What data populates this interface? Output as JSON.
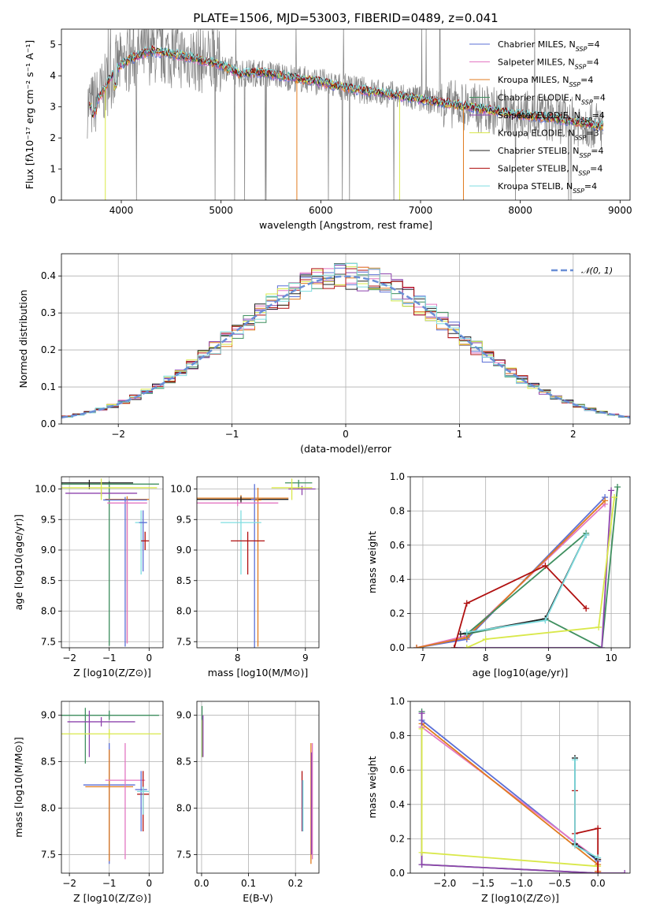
{
  "figure": {
    "title": "PLATE=1506, MJD=53003, FIBERID=0489, z=0.041"
  },
  "chart_data": [
    {
      "id": "spectrum",
      "type": "line",
      "title": "PLATE=1506, MJD=53003, FIBERID=0489, z=0.041",
      "xlabel": "wavelength [Angstrom, rest frame]",
      "ylabel": "Flux [fλ10⁻¹⁷ erg cm⁻² s⁻¹ A⁻¹]",
      "xlim": [
        3400,
        9100
      ],
      "ylim": [
        0,
        5.5
      ],
      "xticks": [
        4000,
        5000,
        6000,
        7000,
        8000,
        9000
      ],
      "yticks": [
        0,
        1,
        2,
        3,
        4,
        5
      ],
      "grid": false,
      "legend_position": "top-right",
      "continuum": [
        [
          3650,
          3.1
        ],
        [
          3700,
          3.0
        ],
        [
          3800,
          3.4
        ],
        [
          3900,
          4.0
        ],
        [
          3950,
          4.25
        ],
        [
          4000,
          4.35
        ],
        [
          4100,
          4.55
        ],
        [
          4200,
          4.7
        ],
        [
          4300,
          4.8
        ],
        [
          4400,
          4.75
        ],
        [
          4500,
          4.7
        ],
        [
          4600,
          4.65
        ],
        [
          4700,
          4.6
        ],
        [
          4800,
          4.5
        ],
        [
          4900,
          4.45
        ],
        [
          5000,
          4.35
        ],
        [
          5100,
          4.2
        ],
        [
          5200,
          4.05
        ],
        [
          5300,
          4.1
        ],
        [
          5400,
          4.1
        ],
        [
          5500,
          4.05
        ],
        [
          5700,
          3.95
        ],
        [
          6000,
          3.8
        ],
        [
          6200,
          3.65
        ],
        [
          6500,
          3.5
        ],
        [
          6800,
          3.35
        ],
        [
          7000,
          3.25
        ],
        [
          7200,
          3.15
        ],
        [
          7500,
          3.0
        ],
        [
          7800,
          2.85
        ],
        [
          8000,
          2.75
        ],
        [
          8300,
          2.65
        ],
        [
          8600,
          2.5
        ],
        [
          8800,
          2.4
        ]
      ],
      "series": [
        {
          "name": "Chabrier MILES, N_SSP=4",
          "color": "#5b6fd6"
        },
        {
          "name": "Salpeter MILES, N_SSP=4",
          "color": "#e377c2"
        },
        {
          "name": "Kroupa MILES, N_SSP=4",
          "color": "#e07b1f"
        },
        {
          "name": "Chabrier ELODIE, N_SSP=4",
          "color": "#3f8f5f"
        },
        {
          "name": "Salpeter ELODIE, N_SSP=4",
          "color": "#8e44ad"
        },
        {
          "name": "Kroupa ELODIE, N_SSP=3",
          "color": "#d9e84a"
        },
        {
          "name": "Chabrier STELIB, N_SSP=4",
          "color": "#222222"
        },
        {
          "name": "Salpeter STELIB, N_SSP=4",
          "color": "#b01010"
        },
        {
          "name": "Kroupa STELIB, N_SSP=4",
          "color": "#7fdde0"
        }
      ]
    },
    {
      "id": "residuals",
      "type": "line",
      "xlabel": "(data-model)/error",
      "ylabel": "Normed distribution",
      "xlim": [
        -2.5,
        2.5
      ],
      "ylim": [
        0,
        0.46
      ],
      "xticks": [
        -2,
        -1,
        0,
        1,
        2
      ],
      "yticks": [
        0.0,
        0.1,
        0.2,
        0.3,
        0.4
      ],
      "grid": true,
      "legend_position": "top-right",
      "legend": [
        "𝒩(0, 1)"
      ],
      "series_colors": [
        "#5b6fd6",
        "#e377c2",
        "#e07b1f",
        "#3f8f5f",
        "#8e44ad",
        "#d9e84a",
        "#222222",
        "#b01010",
        "#7fdde0"
      ]
    },
    {
      "id": "age_vs_Z",
      "type": "scatter",
      "xlabel": "Z [log10(Z/Z⊙)]",
      "ylabel": "age  [log10(age/yr)]",
      "xlim": [
        -2.2,
        0.35
      ],
      "ylim": [
        7.4,
        10.2
      ],
      "xticks": [
        -2,
        -1,
        0
      ],
      "yticks": [
        7.5,
        8.0,
        8.5,
        9.0,
        9.5,
        10.0
      ],
      "grid": true,
      "points": [
        {
          "x": -1.0,
          "y": 10.08,
          "xe": 1.25,
          "ye_lo": 2.65,
          "ye_hi": 0.05,
          "c": "#3f8f5f"
        },
        {
          "x": -1.5,
          "y": 10.1,
          "xe": 1.1,
          "ye_lo": 0.1,
          "ye_hi": 0.05,
          "c": "#222222"
        },
        {
          "x": -1.2,
          "y": 9.93,
          "xe": 0.9,
          "ye_lo": 0.05,
          "ye_hi": 0.05,
          "c": "#8e44ad"
        },
        {
          "x": -1.2,
          "y": 10.02,
          "xe": 1.4,
          "ye_lo": 0.2,
          "ye_hi": 0.15,
          "c": "#d9e84a"
        },
        {
          "x": -0.55,
          "y": 9.83,
          "xe": 0.55,
          "ye_lo": 2.35,
          "ye_hi": 0.05,
          "c": "#e07b1f"
        },
        {
          "x": -0.6,
          "y": 9.82,
          "xe": 0.55,
          "ye_lo": 2.4,
          "ye_hi": 0.05,
          "c": "#5b6fd6"
        },
        {
          "x": -0.55,
          "y": 9.77,
          "xe": 0.5,
          "ye_lo": 2.3,
          "ye_hi": 0.05,
          "c": "#e377c2"
        },
        {
          "x": -0.2,
          "y": 9.45,
          "xe": 0.15,
          "ye_lo": 0.85,
          "ye_hi": 0.2,
          "c": "#7fdde0"
        },
        {
          "x": -0.15,
          "y": 9.45,
          "xe": 0.1,
          "ye_lo": 0.8,
          "ye_hi": 0.2,
          "c": "#5b6fd6"
        },
        {
          "x": -0.1,
          "y": 9.15,
          "xe": 0.1,
          "ye_lo": 0.15,
          "ye_hi": 0.15,
          "c": "#b01010"
        }
      ]
    },
    {
      "id": "age_vs_mass",
      "type": "scatter",
      "xlabel": "mass [log10(M/M⊙)]",
      "ylabel": "",
      "xlim": [
        7.4,
        9.2
      ],
      "ylim": [
        7.4,
        10.2
      ],
      "xticks": [
        8,
        9
      ],
      "yticks": [
        7.5,
        8.0,
        8.5,
        9.0,
        9.5,
        10.0
      ],
      "grid": true,
      "points": [
        {
          "x": 8.9,
          "y": 10.1,
          "xe": 0.2,
          "ye_lo": 0.1,
          "ye_hi": 0.05,
          "c": "#3f8f5f"
        },
        {
          "x": 8.95,
          "y": 10.0,
          "xe": 0.2,
          "ye_lo": 0.1,
          "ye_hi": 0.05,
          "c": "#8e44ad"
        },
        {
          "x": 8.8,
          "y": 10.02,
          "xe": 0.3,
          "ye_lo": 0.2,
          "ye_hi": 0.15,
          "c": "#d9e84a"
        },
        {
          "x": 8.05,
          "y": 9.85,
          "xe": 0.7,
          "ye_lo": 0.05,
          "ye_hi": 0.05,
          "c": "#e07b1f"
        },
        {
          "x": 8.05,
          "y": 9.83,
          "xe": 0.7,
          "ye_lo": 0.05,
          "ye_hi": 0.05,
          "c": "#222222"
        },
        {
          "x": 8.25,
          "y": 9.83,
          "xe": 0.05,
          "ye_lo": 2.45,
          "ye_hi": 0.25,
          "c": "#5b6fd6"
        },
        {
          "x": 8.3,
          "y": 9.82,
          "xe": 0.05,
          "ye_lo": 2.4,
          "ye_hi": 0.2,
          "c": "#e07b1f"
        },
        {
          "x": 8.0,
          "y": 9.77,
          "xe": 0.6,
          "ye_lo": 0.05,
          "ye_hi": 0.05,
          "c": "#e377c2"
        },
        {
          "x": 8.05,
          "y": 9.45,
          "xe": 0.3,
          "ye_lo": 0.85,
          "ye_hi": 0.2,
          "c": "#7fdde0"
        },
        {
          "x": 8.15,
          "y": 9.15,
          "xe": 0.25,
          "ye_lo": 0.55,
          "ye_hi": 0.15,
          "c": "#b01010"
        }
      ]
    },
    {
      "id": "weight_vs_age",
      "type": "line",
      "xlabel": "age  [log10(age/yr)]",
      "ylabel": "mass weight",
      "xlim": [
        6.8,
        10.3
      ],
      "ylim": [
        0,
        1.0
      ],
      "xticks": [
        7,
        8,
        9,
        10
      ],
      "yticks": [
        0.0,
        0.2,
        0.4,
        0.6,
        0.8,
        1.0
      ],
      "grid": true,
      "series": [
        {
          "c": "#5b6fd6",
          "pts": [
            [
              6.9,
              0.0
            ],
            [
              7.7,
              0.05
            ],
            [
              9.9,
              0.88
            ]
          ]
        },
        {
          "c": "#e377c2",
          "pts": [
            [
              6.9,
              0.0
            ],
            [
              7.7,
              0.07
            ],
            [
              9.9,
              0.84
            ]
          ]
        },
        {
          "c": "#e07b1f",
          "pts": [
            [
              6.9,
              0.0
            ],
            [
              7.7,
              0.06
            ],
            [
              9.9,
              0.86
            ]
          ]
        },
        {
          "c": "#3f8f5f",
          "pts": [
            [
              7.7,
              0.08
            ],
            [
              9.6,
              0.67
            ],
            [
              7.7,
              0.08
            ],
            [
              8.95,
              0.17
            ],
            [
              9.85,
              0.0
            ],
            [
              10.1,
              0.94
            ]
          ]
        },
        {
          "c": "#8e44ad",
          "pts": [
            [
              7.5,
              0.0
            ],
            [
              9.85,
              0.0
            ],
            [
              10.0,
              0.92
            ]
          ]
        },
        {
          "c": "#d9e84a",
          "pts": [
            [
              7.7,
              0.0
            ],
            [
              8.0,
              0.05
            ],
            [
              9.8,
              0.12
            ],
            [
              10.05,
              0.88
            ]
          ]
        },
        {
          "c": "#222222",
          "pts": [
            [
              7.6,
              0.08
            ],
            [
              8.95,
              0.17
            ],
            [
              9.6,
              0.66
            ]
          ]
        },
        {
          "c": "#b01010",
          "pts": [
            [
              7.5,
              0.0
            ],
            [
              7.7,
              0.26
            ],
            [
              8.95,
              0.48
            ],
            [
              9.6,
              0.23
            ]
          ]
        },
        {
          "c": "#7fdde0",
          "pts": [
            [
              7.7,
              0.09
            ],
            [
              8.95,
              0.16
            ],
            [
              9.6,
              0.66
            ]
          ]
        }
      ]
    },
    {
      "id": "mass_vs_Z",
      "type": "scatter",
      "xlabel": "Z [log10(Z/Z⊙)]",
      "ylabel": "mass [log10(M/M⊙)]",
      "xlim": [
        -2.2,
        0.35
      ],
      "ylim": [
        7.3,
        9.15
      ],
      "xticks": [
        -2,
        -1,
        0
      ],
      "yticks": [
        7.5,
        8.0,
        8.5,
        9.0
      ],
      "grid": true,
      "points": [
        {
          "x": -1.0,
          "y": 9.0,
          "xe": 1.25,
          "ye_lo": 0.05,
          "ye_hi": 0.05,
          "c": "#3f8f5f"
        },
        {
          "x": -1.6,
          "y": 8.98,
          "xe": 0.0,
          "ye_lo": 0.5,
          "ye_hi": 0.1,
          "c": "#3f8f5f"
        },
        {
          "x": -1.2,
          "y": 8.93,
          "xe": 0.85,
          "ye_lo": 0.05,
          "ye_hi": 0.05,
          "c": "#8e44ad"
        },
        {
          "x": -1.5,
          "y": 8.95,
          "xe": 0.0,
          "ye_lo": 0.4,
          "ye_hi": 0.1,
          "c": "#8e44ad"
        },
        {
          "x": -1.0,
          "y": 8.8,
          "xe": 1.3,
          "ye_lo": 0.05,
          "ye_hi": 0.05,
          "c": "#d9e84a"
        },
        {
          "x": -1.0,
          "y": 8.25,
          "xe": 0.65,
          "ye_lo": 0.85,
          "ye_hi": 0.45,
          "c": "#5b6fd6"
        },
        {
          "x": -1.0,
          "y": 8.23,
          "xe": 0.6,
          "ye_lo": 0.8,
          "ye_hi": 0.4,
          "c": "#e07b1f"
        },
        {
          "x": -0.6,
          "y": 8.3,
          "xe": 0.5,
          "ye_lo": 0.85,
          "ye_hi": 0.4,
          "c": "#e377c2"
        },
        {
          "x": -0.15,
          "y": 8.15,
          "xe": 0.15,
          "ye_lo": 0.4,
          "ye_hi": 0.25,
          "c": "#b01010"
        },
        {
          "x": -0.2,
          "y": 8.2,
          "xe": 0.15,
          "ye_lo": 0.45,
          "ye_hi": 0.2,
          "c": "#5b6fd6"
        },
        {
          "x": -0.15,
          "y": 8.18,
          "xe": 0.15,
          "ye_lo": 0.25,
          "ye_hi": 0.05,
          "c": "#7fdde0"
        }
      ]
    },
    {
      "id": "mass_vs_ebv",
      "type": "scatter",
      "xlabel": "E(B-V)",
      "ylabel": "",
      "xlim": [
        -0.01,
        0.25
      ],
      "ylim": [
        7.3,
        9.15
      ],
      "xticks": [
        0.0,
        0.1,
        0.2
      ],
      "yticks": [
        7.5,
        8.0,
        8.5,
        9.0
      ],
      "grid": true,
      "points": [
        {
          "x": 0.001,
          "y": 8.85,
          "ye_lo": 0.3,
          "ye_hi": 0.25,
          "c": "#3f8f5f"
        },
        {
          "x": 0.002,
          "y": 8.75,
          "ye_lo": 0.2,
          "ye_hi": 0.2,
          "c": "#d9e84a"
        },
        {
          "x": 0.003,
          "y": 8.8,
          "ye_lo": 0.25,
          "ye_hi": 0.2,
          "c": "#8e44ad"
        },
        {
          "x": 0.214,
          "y": 8.1,
          "ye_lo": 0.35,
          "ye_hi": 0.3,
          "c": "#b01010"
        },
        {
          "x": 0.215,
          "y": 8.05,
          "ye_lo": 0.3,
          "ye_hi": 0.25,
          "c": "#5b6fd6"
        },
        {
          "x": 0.216,
          "y": 8.05,
          "ye_lo": 0.3,
          "ye_hi": 0.25,
          "c": "#7fdde0"
        },
        {
          "x": 0.233,
          "y": 8.05,
          "ye_lo": 0.65,
          "ye_hi": 0.65,
          "c": "#e07b1f"
        },
        {
          "x": 0.236,
          "y": 8.05,
          "ye_lo": 0.6,
          "ye_hi": 0.65,
          "c": "#e377c2"
        },
        {
          "x": 0.234,
          "y": 8.1,
          "ye_lo": 0.6,
          "ye_hi": 0.5,
          "c": "#8e44ad"
        }
      ]
    },
    {
      "id": "weight_vs_Z",
      "type": "line",
      "xlabel": "Z [log10(Z/Z⊙)]",
      "ylabel": "mass weight",
      "xlim": [
        -2.45,
        0.42
      ],
      "ylim": [
        0,
        1.0
      ],
      "xticks": [
        -2.0,
        -1.5,
        -1.0,
        -0.5,
        0.0
      ],
      "yticks": [
        0.0,
        0.2,
        0.4,
        0.6,
        0.8,
        1.0
      ],
      "grid": true,
      "series": [
        {
          "c": "#5b6fd6",
          "pts": [
            [
              -2.3,
              0.89
            ],
            [
              0.0,
              0.07
            ],
            [
              0.0,
              0.01
            ]
          ]
        },
        {
          "c": "#e377c2",
          "pts": [
            [
              -2.3,
              0.85
            ],
            [
              0.0,
              0.08
            ],
            [
              0.0,
              0.01
            ]
          ]
        },
        {
          "c": "#e07b1f",
          "pts": [
            [
              -2.3,
              0.87
            ],
            [
              0.0,
              0.05
            ],
            [
              0.0,
              0.01
            ]
          ]
        },
        {
          "c": "#3f8f5f",
          "pts": [
            [
              -2.3,
              0.94
            ],
            [
              -2.3,
              0.05
            ],
            [
              0.0,
              0.0
            ]
          ]
        },
        {
          "c": "#8e44ad",
          "pts": [
            [
              -2.3,
              0.93
            ],
            [
              -2.3,
              0.05
            ],
            [
              0.0,
              0.0
            ],
            [
              0.35,
              0.0
            ]
          ]
        },
        {
          "c": "#d9e84a",
          "pts": [
            [
              -2.3,
              0.84
            ],
            [
              -2.3,
              0.12
            ],
            [
              0.0,
              0.04
            ]
          ]
        },
        {
          "c": "#222222",
          "pts": [
            [
              -0.3,
              0.67
            ],
            [
              -0.3,
              0.17
            ],
            [
              0.0,
              0.08
            ]
          ]
        },
        {
          "c": "#b01010",
          "pts": [
            [
              -0.3,
              0.48
            ],
            [
              -0.3,
              0.23
            ],
            [
              0.0,
              0.26
            ],
            [
              0.0,
              0.0
            ]
          ]
        },
        {
          "c": "#7fdde0",
          "pts": [
            [
              -0.3,
              0.66
            ],
            [
              -0.3,
              0.16
            ],
            [
              0.0,
              0.09
            ]
          ]
        }
      ]
    }
  ]
}
